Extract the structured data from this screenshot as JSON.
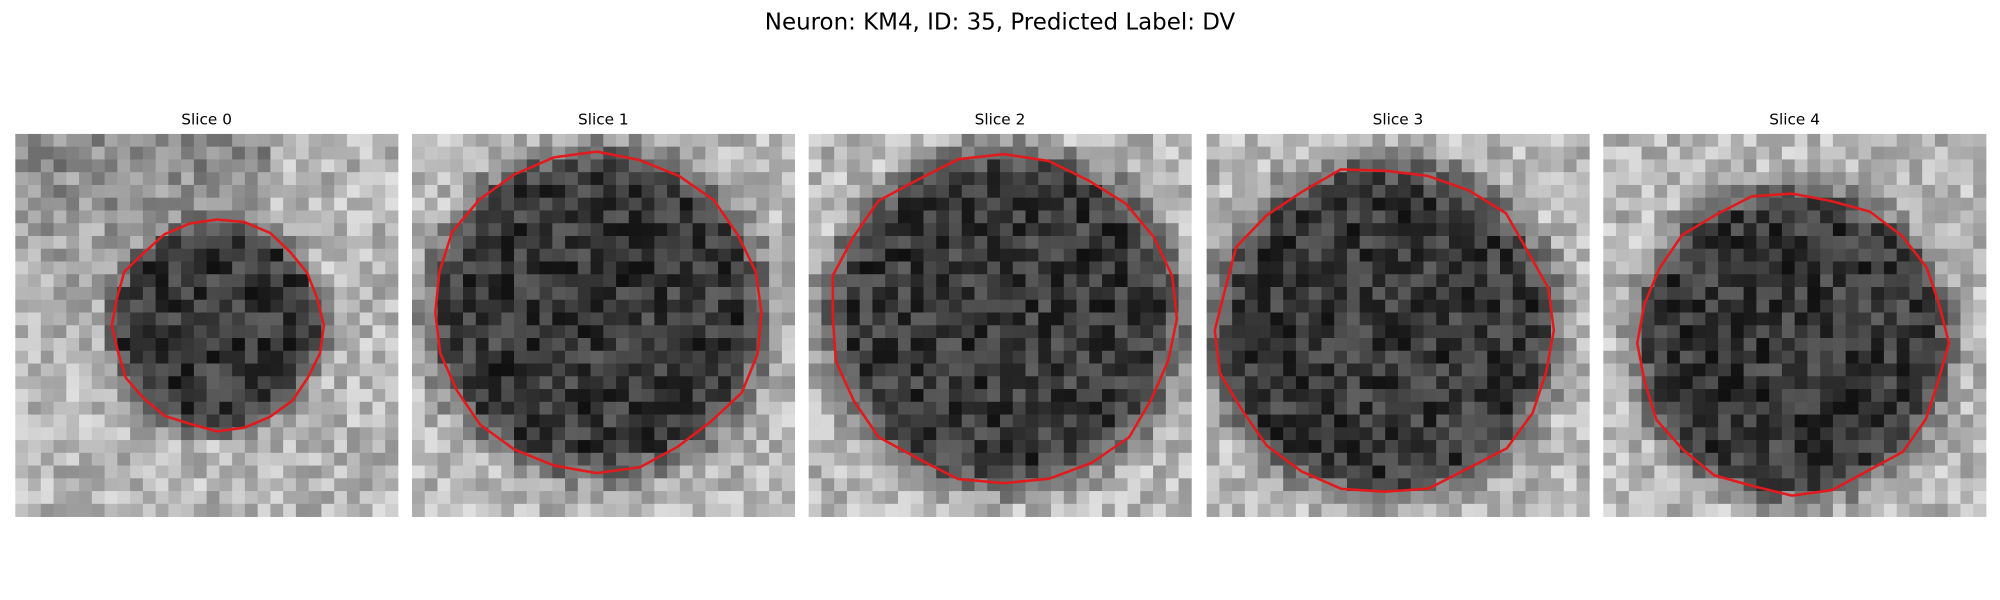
{
  "figure": {
    "title": "Neuron: KM4, ID: 35, Predicted Label: DV",
    "panels": [
      {
        "title": "Slice 0"
      },
      {
        "title": "Slice 1"
      },
      {
        "title": "Slice 2"
      },
      {
        "title": "Slice 3"
      },
      {
        "title": "Slice 4"
      }
    ]
  }
}
